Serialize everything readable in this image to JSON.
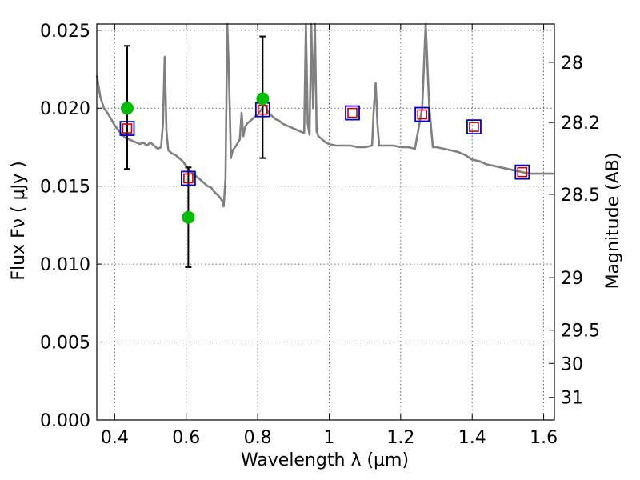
{
  "chart_data": {
    "type": "line",
    "xlabel": "Wavelength  λ (μm)",
    "ylabel": "Flux  Fν ( μJy )",
    "ylabel_right": "Magnitude (AB)",
    "xlim": [
      0.35,
      1.63
    ],
    "ylim": [
      0.0,
      0.0254
    ],
    "x_ticks": [
      0.4,
      0.6,
      0.8,
      1.0,
      1.2,
      1.4,
      1.6
    ],
    "x_tick_labels": [
      "0.4",
      "0.6",
      "0.8",
      "1",
      "1.2",
      "1.4",
      "1.6"
    ],
    "y_ticks": [
      0.0,
      0.005,
      0.01,
      0.015,
      0.02,
      0.025
    ],
    "y_tick_labels": [
      "0.000",
      "0.005",
      "0.010",
      "0.015",
      "0.020",
      "0.025"
    ],
    "right_ticks": [
      {
        "label": "28",
        "flux": 0.02294
      },
      {
        "label": "28.2",
        "flux": 0.01908
      },
      {
        "label": "28.5",
        "flux": 0.01447
      },
      {
        "label": "29",
        "flux": 0.00913
      },
      {
        "label": "29.5",
        "flux": 0.00576
      },
      {
        "label": "30",
        "flux": 0.00363
      },
      {
        "label": "31",
        "flux": 0.00145
      }
    ],
    "grid": true,
    "colors": {
      "spectrum": "#808080",
      "observed": "#00bf00",
      "model_photometry": "#0000cc",
      "model_inner": "#cc0000",
      "errorbar": "#000000"
    },
    "spectrum": {
      "x": [
        0.35,
        0.36,
        0.37,
        0.38,
        0.39,
        0.4,
        0.41,
        0.42,
        0.43,
        0.44,
        0.45,
        0.46,
        0.47,
        0.48,
        0.49,
        0.5,
        0.51,
        0.52,
        0.53,
        0.535,
        0.54,
        0.545,
        0.55,
        0.56,
        0.57,
        0.58,
        0.59,
        0.6,
        0.61,
        0.62,
        0.63,
        0.64,
        0.65,
        0.66,
        0.67,
        0.68,
        0.69,
        0.7,
        0.705,
        0.71,
        0.715,
        0.72,
        0.725,
        0.73,
        0.74,
        0.75,
        0.755,
        0.76,
        0.765,
        0.77,
        0.78,
        0.79,
        0.8,
        0.81,
        0.82,
        0.83,
        0.84,
        0.85,
        0.86,
        0.87,
        0.88,
        0.89,
        0.9,
        0.91,
        0.92,
        0.93,
        0.935,
        0.94,
        0.945,
        0.95,
        0.955,
        0.96,
        0.965,
        0.97,
        0.98,
        0.99,
        1.0,
        1.02,
        1.04,
        1.06,
        1.08,
        1.1,
        1.12,
        1.125,
        1.13,
        1.135,
        1.14,
        1.16,
        1.18,
        1.2,
        1.22,
        1.24,
        1.26,
        1.27,
        1.28,
        1.29,
        1.3,
        1.32,
        1.34,
        1.36,
        1.38,
        1.4,
        1.42,
        1.44,
        1.46,
        1.48,
        1.5,
        1.52,
        1.54,
        1.56,
        1.58,
        1.6,
        1.63
      ],
      "y": [
        0.0221,
        0.0207,
        0.02,
        0.0197,
        0.0193,
        0.0189,
        0.0186,
        0.0183,
        0.0181,
        0.018,
        0.0179,
        0.0178,
        0.0177,
        0.0178,
        0.0176,
        0.0178,
        0.0176,
        0.0174,
        0.0175,
        0.019,
        0.0233,
        0.0185,
        0.0173,
        0.0171,
        0.017,
        0.0168,
        0.0166,
        0.0163,
        0.016,
        0.0158,
        0.0156,
        0.0154,
        0.0152,
        0.015,
        0.0149,
        0.0146,
        0.0144,
        0.0141,
        0.0137,
        0.0155,
        0.0254,
        0.022,
        0.0168,
        0.0173,
        0.0176,
        0.018,
        0.0197,
        0.0182,
        0.0188,
        0.019,
        0.0192,
        0.0194,
        0.0196,
        0.0199,
        0.0203,
        0.0197,
        0.0195,
        0.0193,
        0.0192,
        0.019,
        0.0189,
        0.0188,
        0.0187,
        0.0186,
        0.0185,
        0.0184,
        0.0254,
        0.019,
        0.0183,
        0.0254,
        0.02,
        0.0254,
        0.0185,
        0.0182,
        0.018,
        0.0178,
        0.0177,
        0.0176,
        0.0176,
        0.0176,
        0.0175,
        0.0175,
        0.0176,
        0.02,
        0.0216,
        0.019,
        0.0176,
        0.0176,
        0.0176,
        0.0175,
        0.0175,
        0.0174,
        0.02,
        0.0254,
        0.02,
        0.0175,
        0.0175,
        0.0174,
        0.0173,
        0.0172,
        0.017,
        0.0167,
        0.0166,
        0.0164,
        0.0163,
        0.0162,
        0.0161,
        0.016,
        0.0159,
        0.0158,
        0.0158,
        0.0158,
        0.0158
      ]
    },
    "model_photometry": [
      {
        "x": 0.435,
        "y": 0.0187
      },
      {
        "x": 0.606,
        "y": 0.0155
      },
      {
        "x": 0.814,
        "y": 0.0199
      },
      {
        "x": 1.065,
        "y": 0.0197
      },
      {
        "x": 1.26,
        "y": 0.0196
      },
      {
        "x": 1.405,
        "y": 0.0188
      },
      {
        "x": 1.54,
        "y": 0.0159
      }
    ],
    "observed": [
      {
        "x": 0.435,
        "y": 0.02,
        "err_low": 0.0161,
        "err_high": 0.024
      },
      {
        "x": 0.606,
        "y": 0.013,
        "err_low": 0.0098,
        "err_high": 0.0162
      },
      {
        "x": 0.814,
        "y": 0.0206,
        "err_low": 0.0168,
        "err_high": 0.0246
      }
    ]
  }
}
